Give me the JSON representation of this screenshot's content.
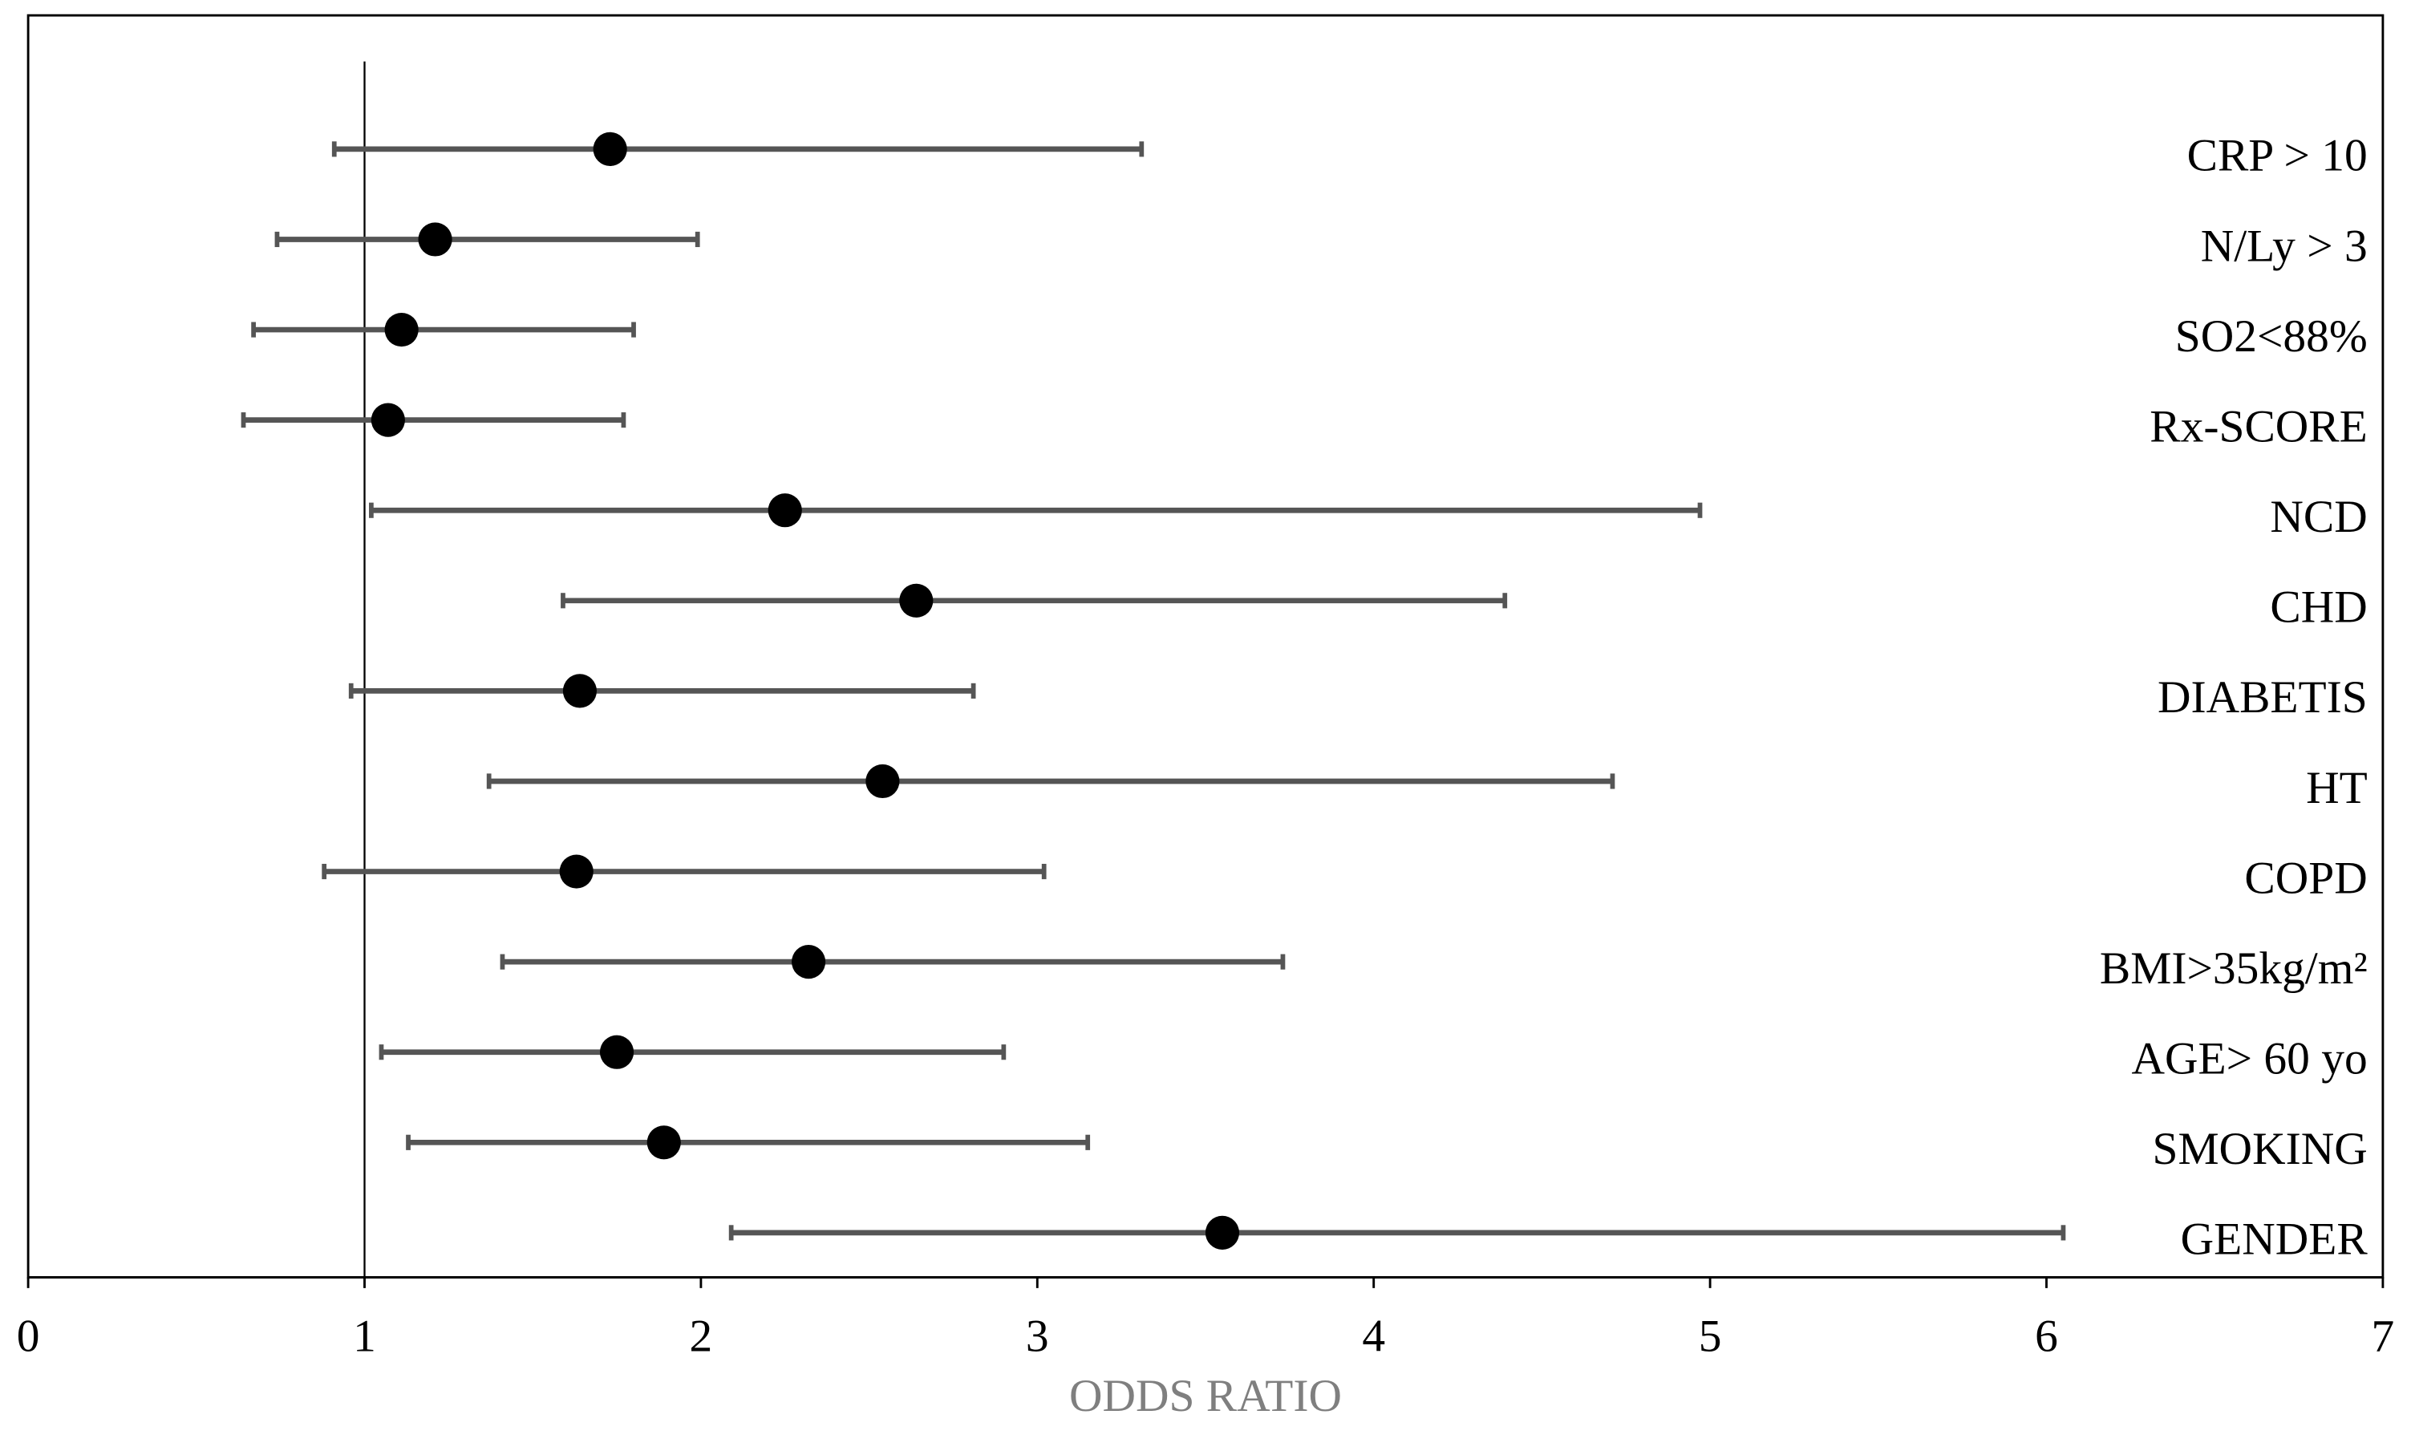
{
  "chart_data": {
    "type": "forest",
    "x_label": "ODDS RATIO",
    "categories": [
      "CRP > 10",
      "N/Ly > 3",
      "SO2<88%",
      "Rx-SCORE",
      "NCD",
      "CHD",
      "DIABETIS",
      "HT",
      "COPD",
      "BMI>35kg/m²",
      "AGE> 60 yo",
      "SMOKING",
      "GENDER"
    ],
    "values": [
      1.73,
      1.21,
      1.11,
      1.07,
      2.25,
      2.64,
      1.64,
      2.54,
      1.63,
      2.32,
      1.75,
      1.89,
      3.55
    ],
    "ci_low": [
      0.91,
      0.74,
      0.67,
      0.64,
      1.02,
      1.59,
      0.96,
      1.37,
      0.88,
      1.41,
      1.05,
      1.13,
      2.09
    ],
    "ci_high": [
      3.31,
      1.99,
      1.8,
      1.77,
      4.97,
      4.39,
      2.81,
      4.71,
      3.02,
      3.73,
      2.9,
      3.15,
      6.05
    ],
    "color": "#555555",
    "point_color": "#000000",
    "reference_x": 1,
    "xlim": [
      0,
      7
    ],
    "xticks": [
      0,
      1,
      2,
      3,
      4,
      5,
      6,
      7
    ]
  }
}
